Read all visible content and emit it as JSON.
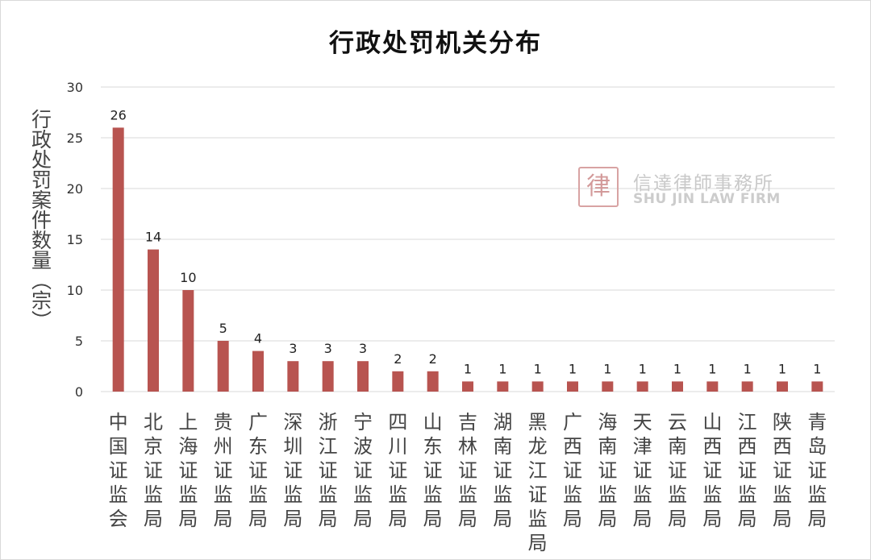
{
  "chart_data": {
    "type": "bar",
    "title": "行政处罚机关分布",
    "ylabel": "行政处罚案件数量（宗）",
    "xlabel": "",
    "ylim": [
      0,
      30
    ],
    "yticks": [
      0,
      5,
      10,
      15,
      20,
      25,
      30
    ],
    "grid": true,
    "bar_color": "#b85450",
    "categories": [
      "中国证监会",
      "北京证监局",
      "上海证监局",
      "贵州证监局",
      "广东证监局",
      "深圳证监局",
      "浙江证监局",
      "宁波证监局",
      "四川证监局",
      "山东证监局",
      "吉林证监局",
      "湖南证监局",
      "黑龙江证监局",
      "广西证监局",
      "海南证监局",
      "天津证监局",
      "云南证监局",
      "山西证监局",
      "江西证监局",
      "陕西证监局",
      "青岛证监局"
    ],
    "values": [
      26,
      14,
      10,
      5,
      4,
      3,
      3,
      3,
      2,
      2,
      1,
      1,
      1,
      1,
      1,
      1,
      1,
      1,
      1,
      1,
      1
    ]
  },
  "watermark": {
    "seal_text": "律",
    "name_cn": "信達律師事務所",
    "name_en": "SHU JIN LAW FIRM"
  }
}
